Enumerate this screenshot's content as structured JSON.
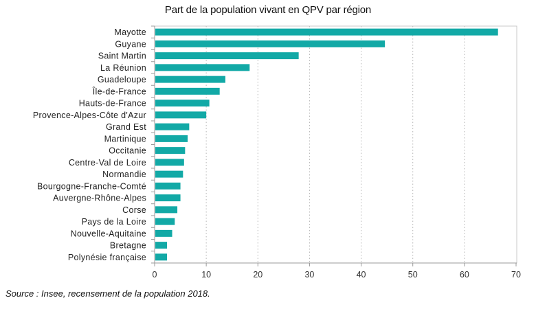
{
  "chart_data": {
    "type": "bar",
    "orientation": "horizontal",
    "title": "Part de la population vivant en QPV par région",
    "xlabel": "",
    "ylabel": "",
    "categories": [
      "Mayotte",
      "Guyane",
      "Saint Martin",
      "La Réunion",
      "Guadeloupe",
      "Île-de-France",
      "Hauts-de-France",
      "Provence-Alpes-Côte d'Azur",
      "Grand Est",
      "Martinique",
      "Occitanie",
      "Centre-Val de Loire",
      "Normandie",
      "Bourgogne-Franche-Comté",
      "Auvergne-Rhône-Alpes",
      "Corse",
      "Pays de la Loire",
      "Nouvelle-Aquitaine",
      "Bretagne",
      "Polynésie française"
    ],
    "values": [
      66.5,
      44.6,
      27.9,
      18.4,
      13.7,
      12.6,
      10.6,
      10.0,
      6.7,
      6.4,
      5.9,
      5.7,
      5.5,
      5.0,
      5.0,
      4.4,
      3.9,
      3.4,
      2.4,
      2.4
    ],
    "xlim": [
      0,
      70
    ],
    "xticks": [
      0,
      10,
      20,
      30,
      40,
      50,
      60,
      70
    ],
    "grid": "vertical dotted",
    "legend": "none",
    "bar_color": "#12a9a6"
  },
  "source": "Source : Insee, recensement de la population 2018."
}
